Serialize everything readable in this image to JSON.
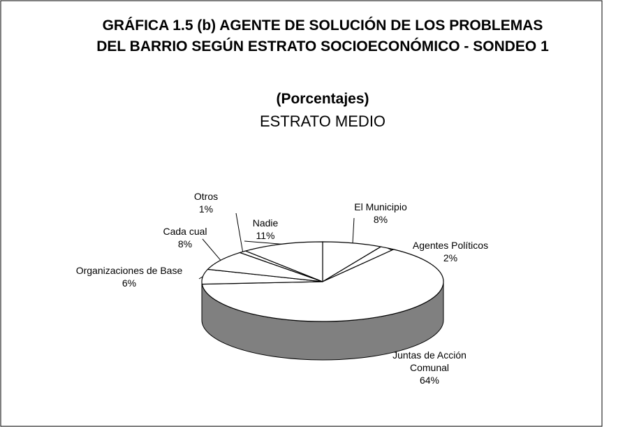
{
  "chart_data": {
    "type": "pie3d",
    "title": "GRÁFICA 1.5 (b) AGENTE DE SOLUCIÓN DE LOS PROBLEMAS DEL BARRIO SEGÚN ESTRATO SOCIOECONÓMICO - SONDEO 1",
    "subtitle": "(Porcentajes)",
    "subtitle2": "ESTRATO MEDIO",
    "categories": [
      "El Municipio",
      "Agentes Políticos",
      "Juntas de Acción Comunal",
      "Organizaciones de Base",
      "Cada cual",
      "Otros",
      "Nadie"
    ],
    "values": [
      8,
      2,
      64,
      6,
      8,
      1,
      11
    ],
    "value_labels": [
      "8%",
      "2%",
      "64%",
      "6%",
      "8%",
      "1%",
      "11%"
    ],
    "color": "#ffffff",
    "side_color": "#808080"
  }
}
